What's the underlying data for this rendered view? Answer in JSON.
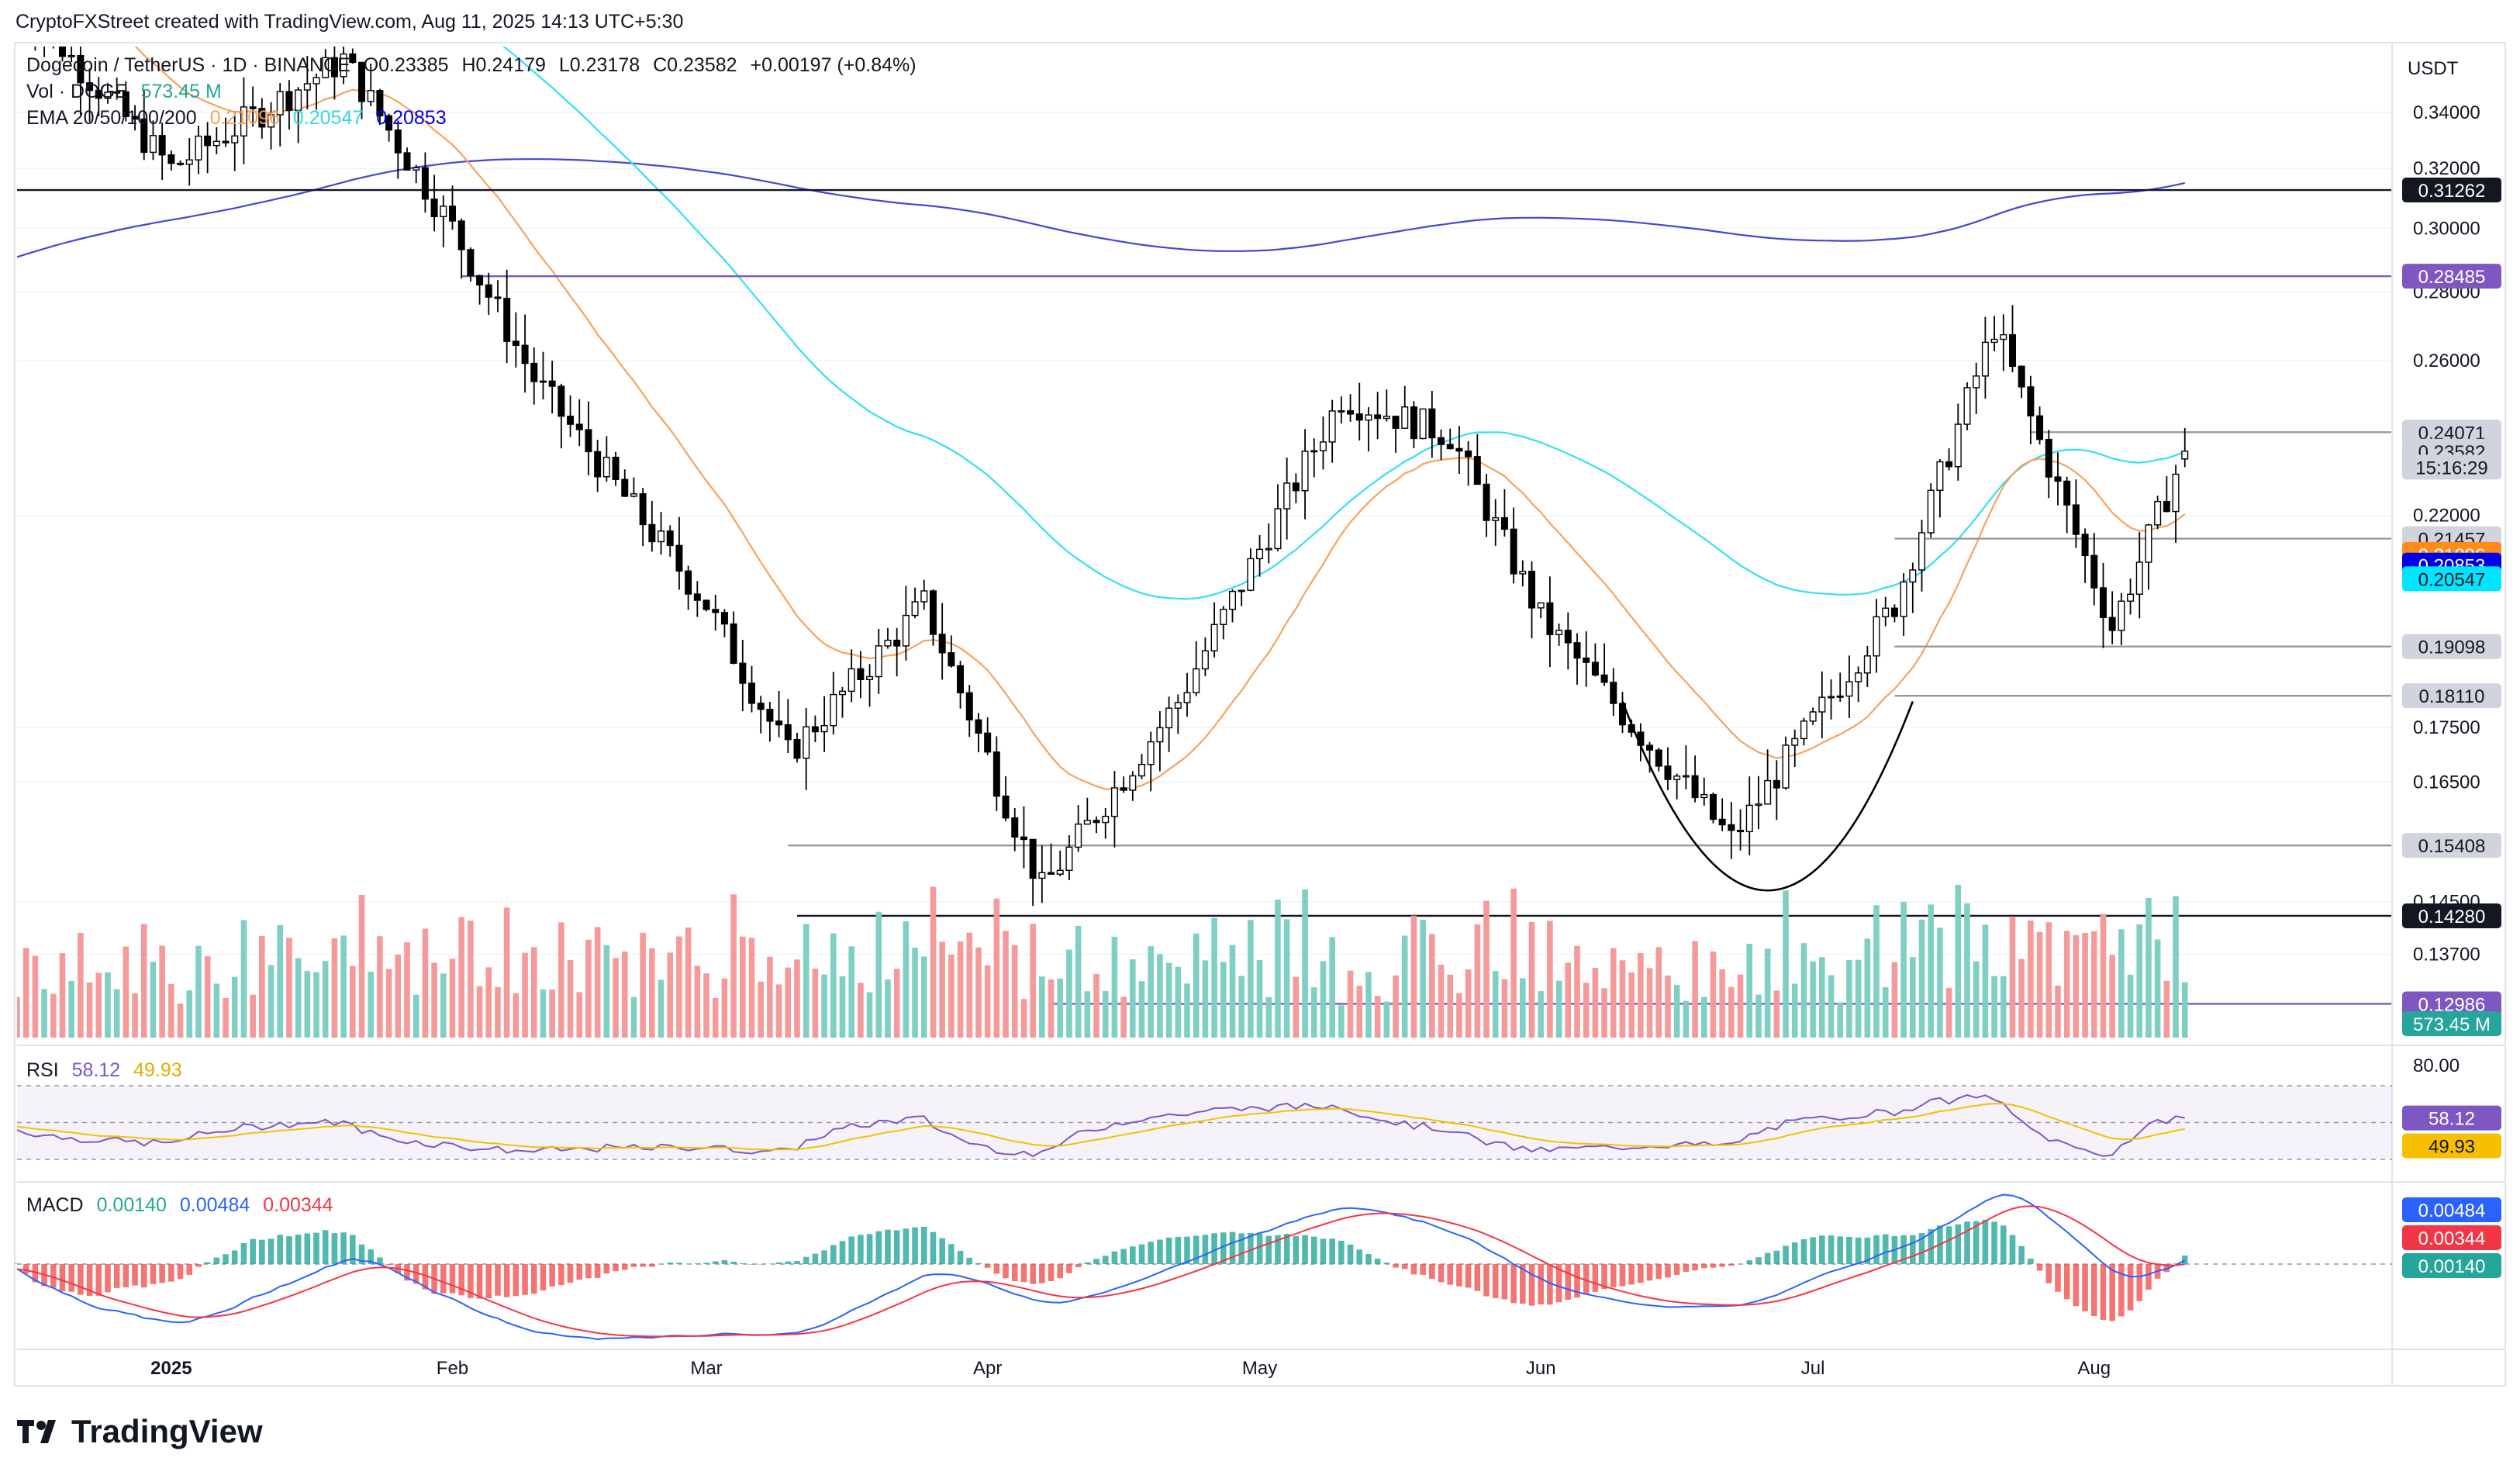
{
  "header": {
    "credit": "CryptoFXStreet created with TradingView.com, Aug 11, 2025 14:13 UTC+5:30"
  },
  "legend": {
    "symbol": "Dogecoin / TetherUS · 1D · BINANCE",
    "open": "O0.23385",
    "high": "H0.24179",
    "low": "L0.23178",
    "close": "C0.23582",
    "change": "+0.00197 (+0.84%)",
    "vol_label": "Vol · DOGE",
    "vol_value": "573.45 M",
    "ema_label": "EMA 20/50/100/200",
    "ema20": "0.21096",
    "ema50": "0.20547",
    "ema200": "0.20853"
  },
  "price_axis": {
    "currency": "USDT",
    "ticks": [
      "0.34000",
      "0.32000",
      "0.30000",
      "0.28000",
      "0.26000",
      "0.22000",
      "0.17500",
      "0.16500",
      "0.14500",
      "0.13700"
    ],
    "tags": [
      {
        "text": "0.31262",
        "bg": "#131722",
        "fg": "#ffffff",
        "v": 0.31262
      },
      {
        "text": "0.28485",
        "bg": "#7e57c2",
        "fg": "#ffffff",
        "v": 0.28485
      },
      {
        "text": "0.24071",
        "bg": "#d1d4dc",
        "fg": "#131722",
        "v": 0.24071
      },
      {
        "text": "0.23582",
        "bg": "#d1d4dc",
        "fg": "#131722",
        "v": 0.23582
      },
      {
        "text": "15:16:29",
        "bg": "#d1d4dc",
        "fg": "#131722",
        "v": 0.2318
      },
      {
        "text": "0.21457",
        "bg": "#d1d4dc",
        "fg": "#131722",
        "v": 0.21457
      },
      {
        "text": "0.21096",
        "bg": "#ff8c1a",
        "fg": "#ffffff",
        "v": 0.21096
      },
      {
        "text": "0.20853",
        "bg": "#0000e6",
        "fg": "#ffffff",
        "v": 0.20853
      },
      {
        "text": "0.20547",
        "bg": "#00e5ff",
        "fg": "#131722",
        "v": 0.20547
      },
      {
        "text": "0.19098",
        "bg": "#d1d4dc",
        "fg": "#131722",
        "v": 0.19098
      },
      {
        "text": "0.18110",
        "bg": "#d1d4dc",
        "fg": "#131722",
        "v": 0.1811
      },
      {
        "text": "0.15408",
        "bg": "#d1d4dc",
        "fg": "#131722",
        "v": 0.15408
      },
      {
        "text": "0.14280",
        "bg": "#131722",
        "fg": "#ffffff",
        "v": 0.1428
      },
      {
        "text": "0.12986",
        "bg": "#7e57c2",
        "fg": "#ffffff",
        "v": 0.12986
      }
    ],
    "vol_tag": "573.45 M"
  },
  "rsi": {
    "label": "RSI",
    "value": "58.12",
    "ma": "49.93",
    "tick": "80.00"
  },
  "macd": {
    "label": "MACD",
    "hist": "0.00140",
    "macd": "0.00484",
    "signal": "0.00344"
  },
  "time_axis": [
    "2025",
    "Feb",
    "Mar",
    "Apr",
    "May",
    "Jun",
    "Jul",
    "Aug"
  ],
  "watermark": "TradingView",
  "colors": {
    "up": "#ffffff",
    "down": "#000000",
    "ema20": "#f7a35c",
    "ema50": "#33e0f0",
    "ema200": "#4545d6",
    "vol_up": "#7fcfc4",
    "vol_down": "#f59a9a",
    "rsi": "#7e57c2",
    "rsi_ma": "#f6c000",
    "macd": "#2962ff",
    "signal": "#f23645",
    "hist_up": "#26a69a",
    "hist_down": "#ef5350"
  },
  "chart_data": {
    "type": "candlestick",
    "title": "Dogecoin / TetherUS · 1D · BINANCE",
    "x_range": [
      "2024-12-15",
      "2025-08-11"
    ],
    "y_scale": "log",
    "y_range": [
      0.125,
      0.365
    ],
    "horizontal_levels": [
      0.31262,
      0.28485,
      0.24071,
      0.21457,
      0.19098,
      0.1811,
      0.15408,
      0.1428,
      0.12986
    ],
    "pattern": "rounded bottom (cup) June–July",
    "monthly_path": [
      {
        "date": "2024-12-15",
        "close": 0.385
      },
      {
        "date": "2025-01-01",
        "close": 0.32
      },
      {
        "date": "2025-01-20",
        "close": 0.36
      },
      {
        "date": "2025-02-01",
        "close": 0.3
      },
      {
        "date": "2025-02-10",
        "close": 0.255
      },
      {
        "date": "2025-03-01",
        "close": 0.2
      },
      {
        "date": "2025-03-10",
        "close": 0.17
      },
      {
        "date": "2025-03-25",
        "close": 0.2
      },
      {
        "date": "2025-04-07",
        "close": 0.147
      },
      {
        "date": "2025-04-22",
        "close": 0.18
      },
      {
        "date": "2025-05-10",
        "close": 0.25
      },
      {
        "date": "2025-05-22",
        "close": 0.24
      },
      {
        "date": "2025-06-01",
        "close": 0.197
      },
      {
        "date": "2025-06-22",
        "close": 0.155
      },
      {
        "date": "2025-07-10",
        "close": 0.2
      },
      {
        "date": "2025-07-21",
        "close": 0.27
      },
      {
        "date": "2025-08-03",
        "close": 0.195
      },
      {
        "date": "2025-08-11",
        "close": 0.23582
      }
    ]
  }
}
